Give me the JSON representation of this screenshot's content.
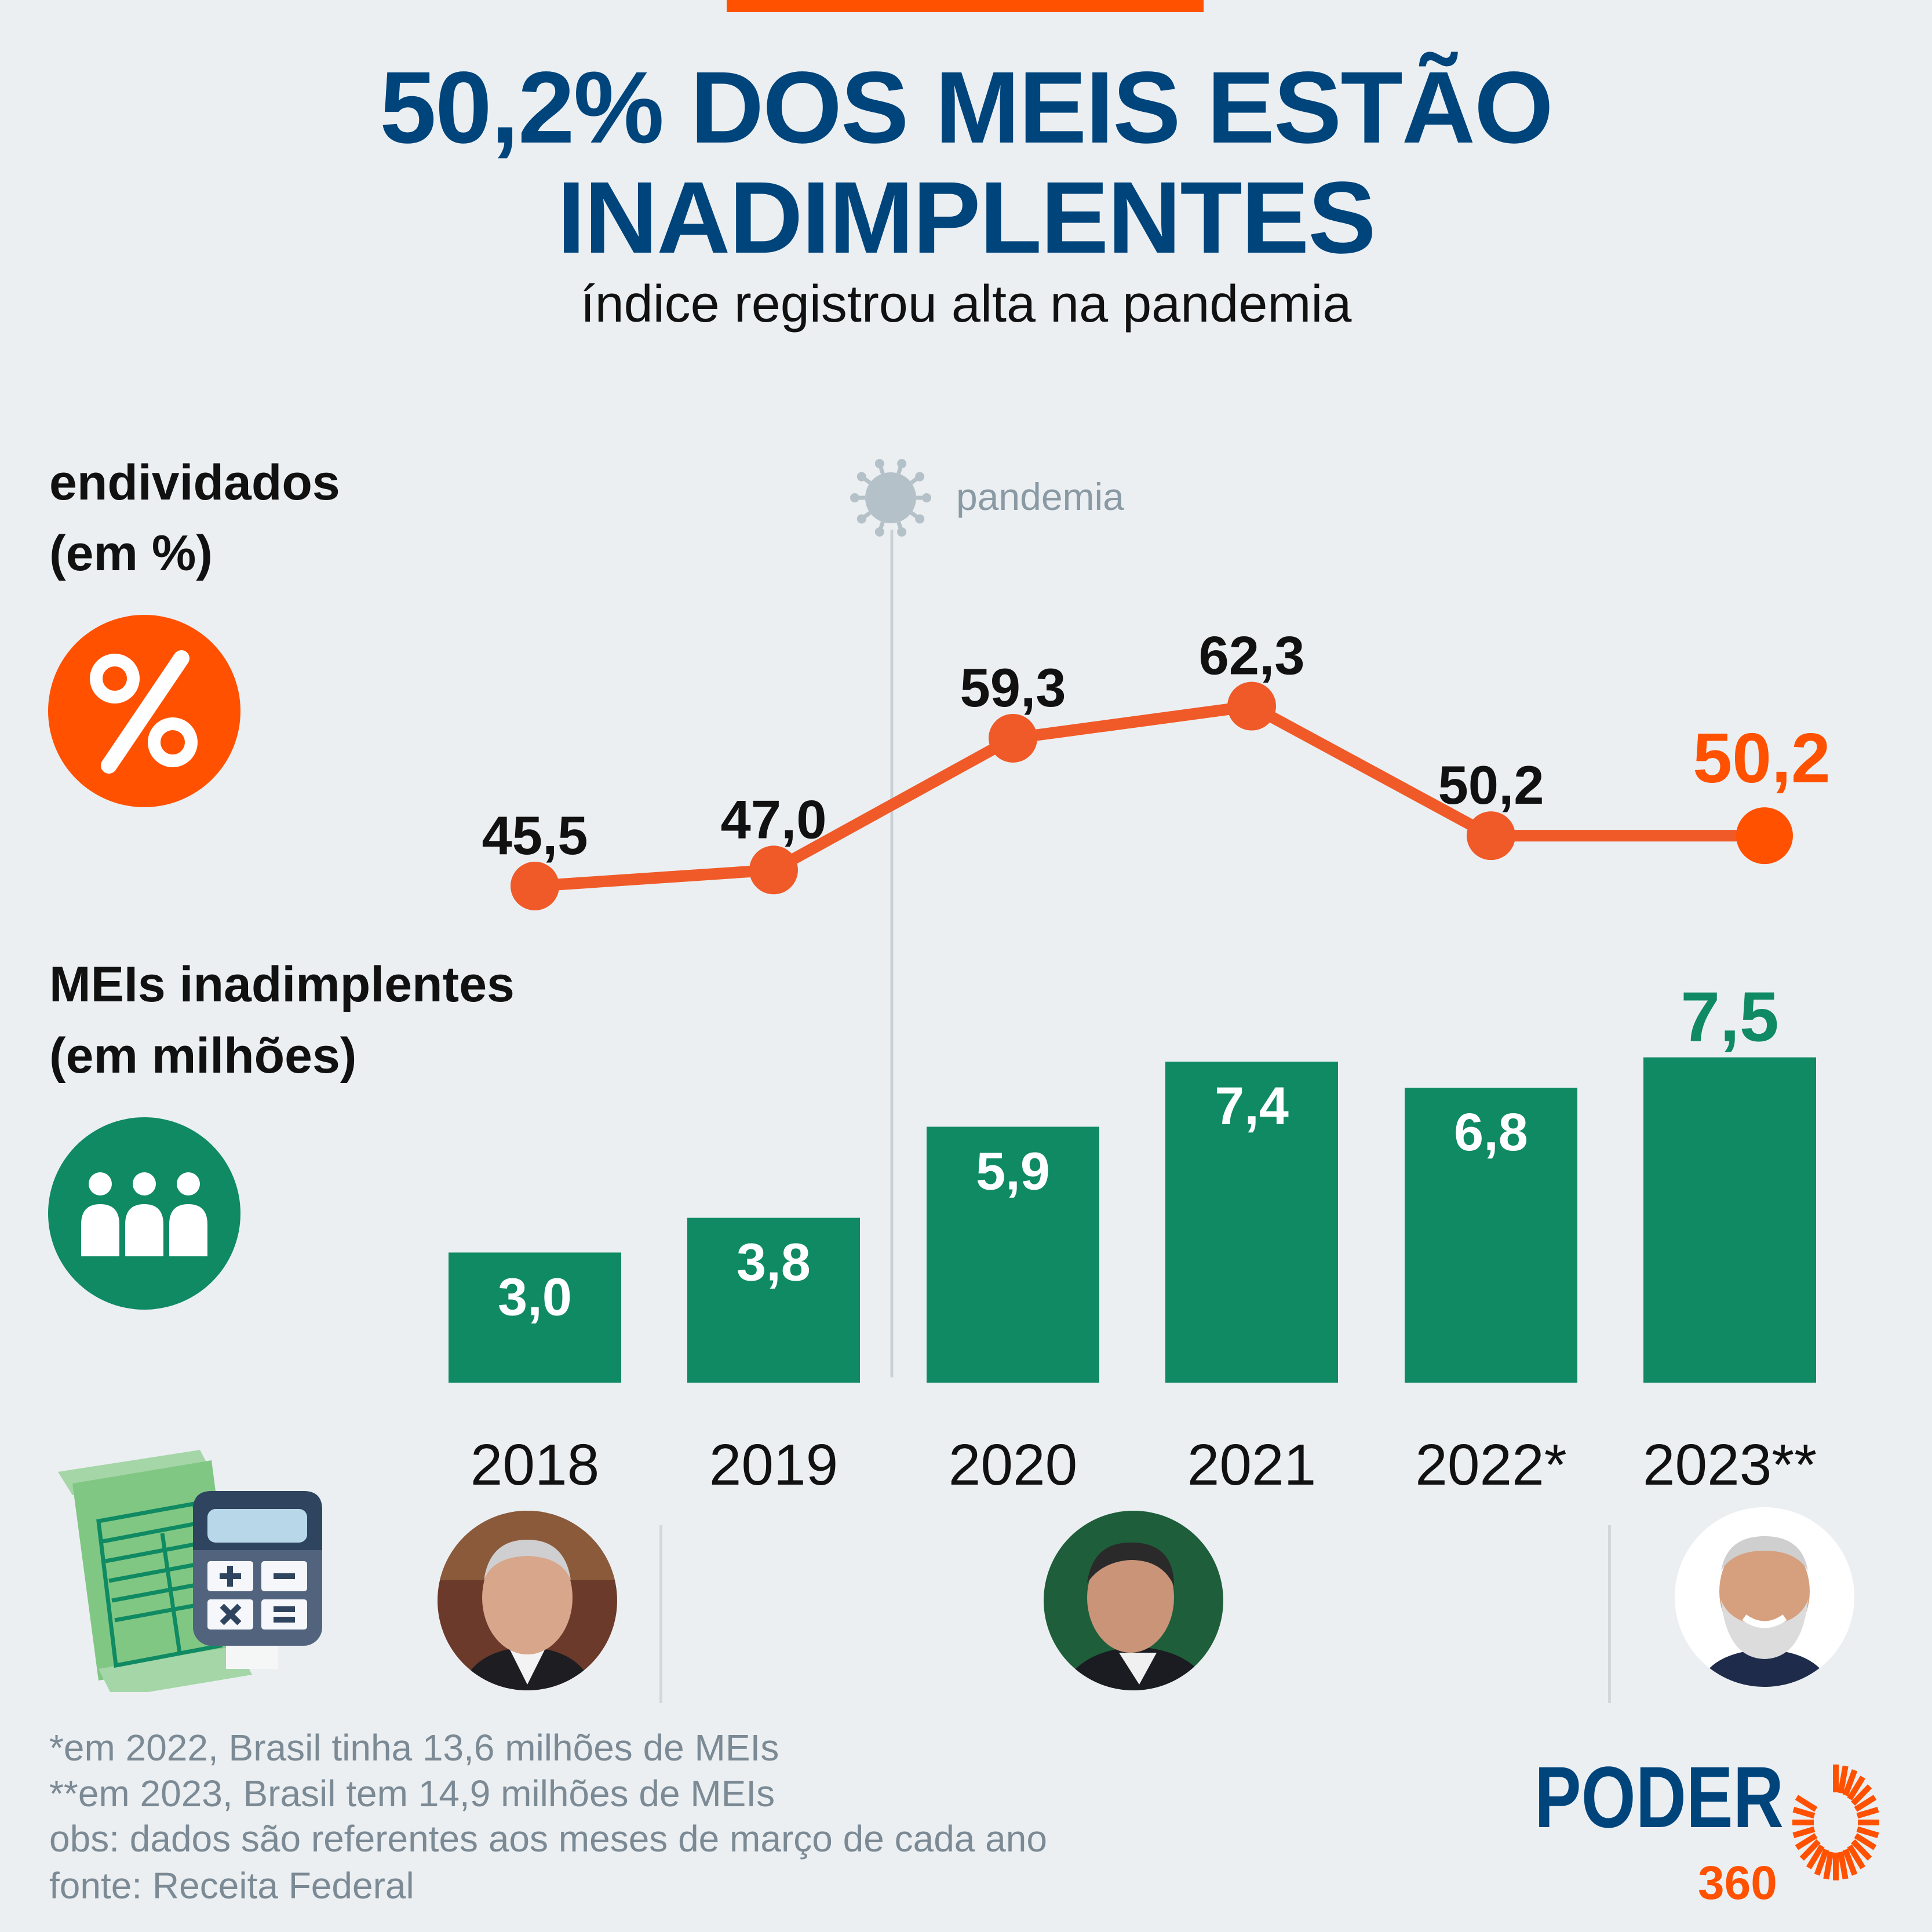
{
  "header": {
    "title_line1": "50,2% DOS MEIS ESTÃO",
    "title_line2": "INADIMPLENTES",
    "subtitle": "índice registrou alta na pandemia"
  },
  "sections": {
    "line_label_1": "endividados",
    "line_label_2": "(em %)",
    "bar_label_1": "MEIs inadimplentes",
    "bar_label_2": "(em milhões)",
    "percent_icon": "percent-icon",
    "people_icon": "people-icon",
    "calculator_icon": "calculator-spreadsheet-icon"
  },
  "pandemic_marker": {
    "label": "pandemia",
    "icon": "virus-icon",
    "between": [
      "2019",
      "2020"
    ]
  },
  "chart_data": {
    "type": "bar+line",
    "categories": [
      "2018",
      "2019",
      "2020",
      "2021",
      "2022*",
      "2023**"
    ],
    "series": [
      {
        "name": "endividados (em %)",
        "type": "line",
        "values": [
          45.5,
          47.0,
          59.3,
          62.3,
          50.2,
          50.2
        ],
        "labels": [
          "45,5",
          "47,0",
          "59,3",
          "62,3",
          "50,2",
          "50,2"
        ],
        "color": "#f05a28",
        "highlight_color": "#ff5100"
      },
      {
        "name": "MEIs inadimplentes (em milhões)",
        "type": "bar",
        "values": [
          3.0,
          3.8,
          5.9,
          7.4,
          6.8,
          7.5
        ],
        "labels": [
          "3,0",
          "3,8",
          "5,9",
          "7,4",
          "6,8",
          "7,5"
        ],
        "color": "#0f8a62"
      }
    ],
    "grid": false
  },
  "presidents": [
    {
      "icon": "president-photo-temer",
      "years": [
        "2018"
      ]
    },
    {
      "icon": "president-photo-bolsonaro",
      "years": [
        "2019",
        "2020",
        "2021",
        "2022*"
      ]
    },
    {
      "icon": "president-photo-lula",
      "years": [
        "2023**"
      ]
    }
  ],
  "footnotes": [
    "*em 2022, Brasil tinha 13,6 milhões de MEIs",
    "**em 2023, Brasil tem 14,9 milhões de MEIs",
    "obs: dados são referentes aos meses de março de cada ano",
    "fonte: Receita Federal"
  ],
  "logo": {
    "word": "PODER",
    "number": "360"
  },
  "colors": {
    "navy": "#00447c",
    "orange": "#ff5100",
    "green": "#0f8a62",
    "background": "#ebeff2",
    "gray": "#7b8a94"
  }
}
